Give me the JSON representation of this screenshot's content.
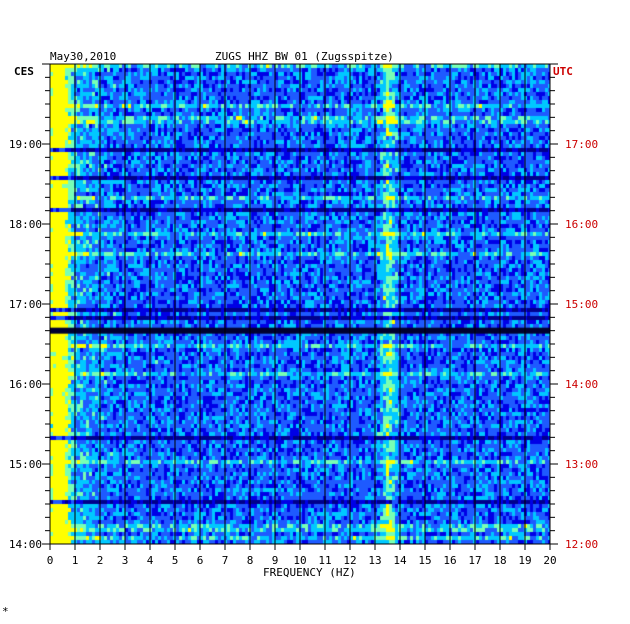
{
  "chart_data": {
    "type": "heatmap",
    "date": "May30,2010",
    "title": "ZUGS HHZ BW 01 (Zugsspitze)",
    "left_axis_label": "CES",
    "right_axis_label": "UTC",
    "xlabel": "FREQUENCY (HZ)",
    "x_ticks": [
      0,
      1,
      2,
      3,
      4,
      5,
      6,
      7,
      8,
      9,
      10,
      11,
      12,
      13,
      14,
      15,
      16,
      17,
      18,
      19,
      20
    ],
    "xlim": [
      0,
      20
    ],
    "left_time_ticks": [
      "19:00",
      "18:00",
      "17:00",
      "16:00",
      "15:00",
      "14:00"
    ],
    "right_time_ticks": [
      "17:00",
      "16:00",
      "15:00",
      "14:00",
      "13:00",
      "12:00"
    ],
    "left_tick_hours": [
      19,
      18,
      17,
      16,
      15,
      14
    ],
    "ylim_hours_ces": [
      14,
      20
    ],
    "grid": true,
    "colormap": [
      "#00008c",
      "#0000e6",
      "#1e5aff",
      "#00c8ff",
      "#78ffb4",
      "#ffff00",
      "#ff3c00"
    ],
    "bright_bands_hz": [
      0.3,
      13.5
    ],
    "dark_gap_ces": "16:40",
    "corner_mark": "*"
  },
  "colors": {
    "left_labels": "#000000",
    "right_labels": "#cc0000",
    "grid": "#000000",
    "background": "#0000aa"
  }
}
